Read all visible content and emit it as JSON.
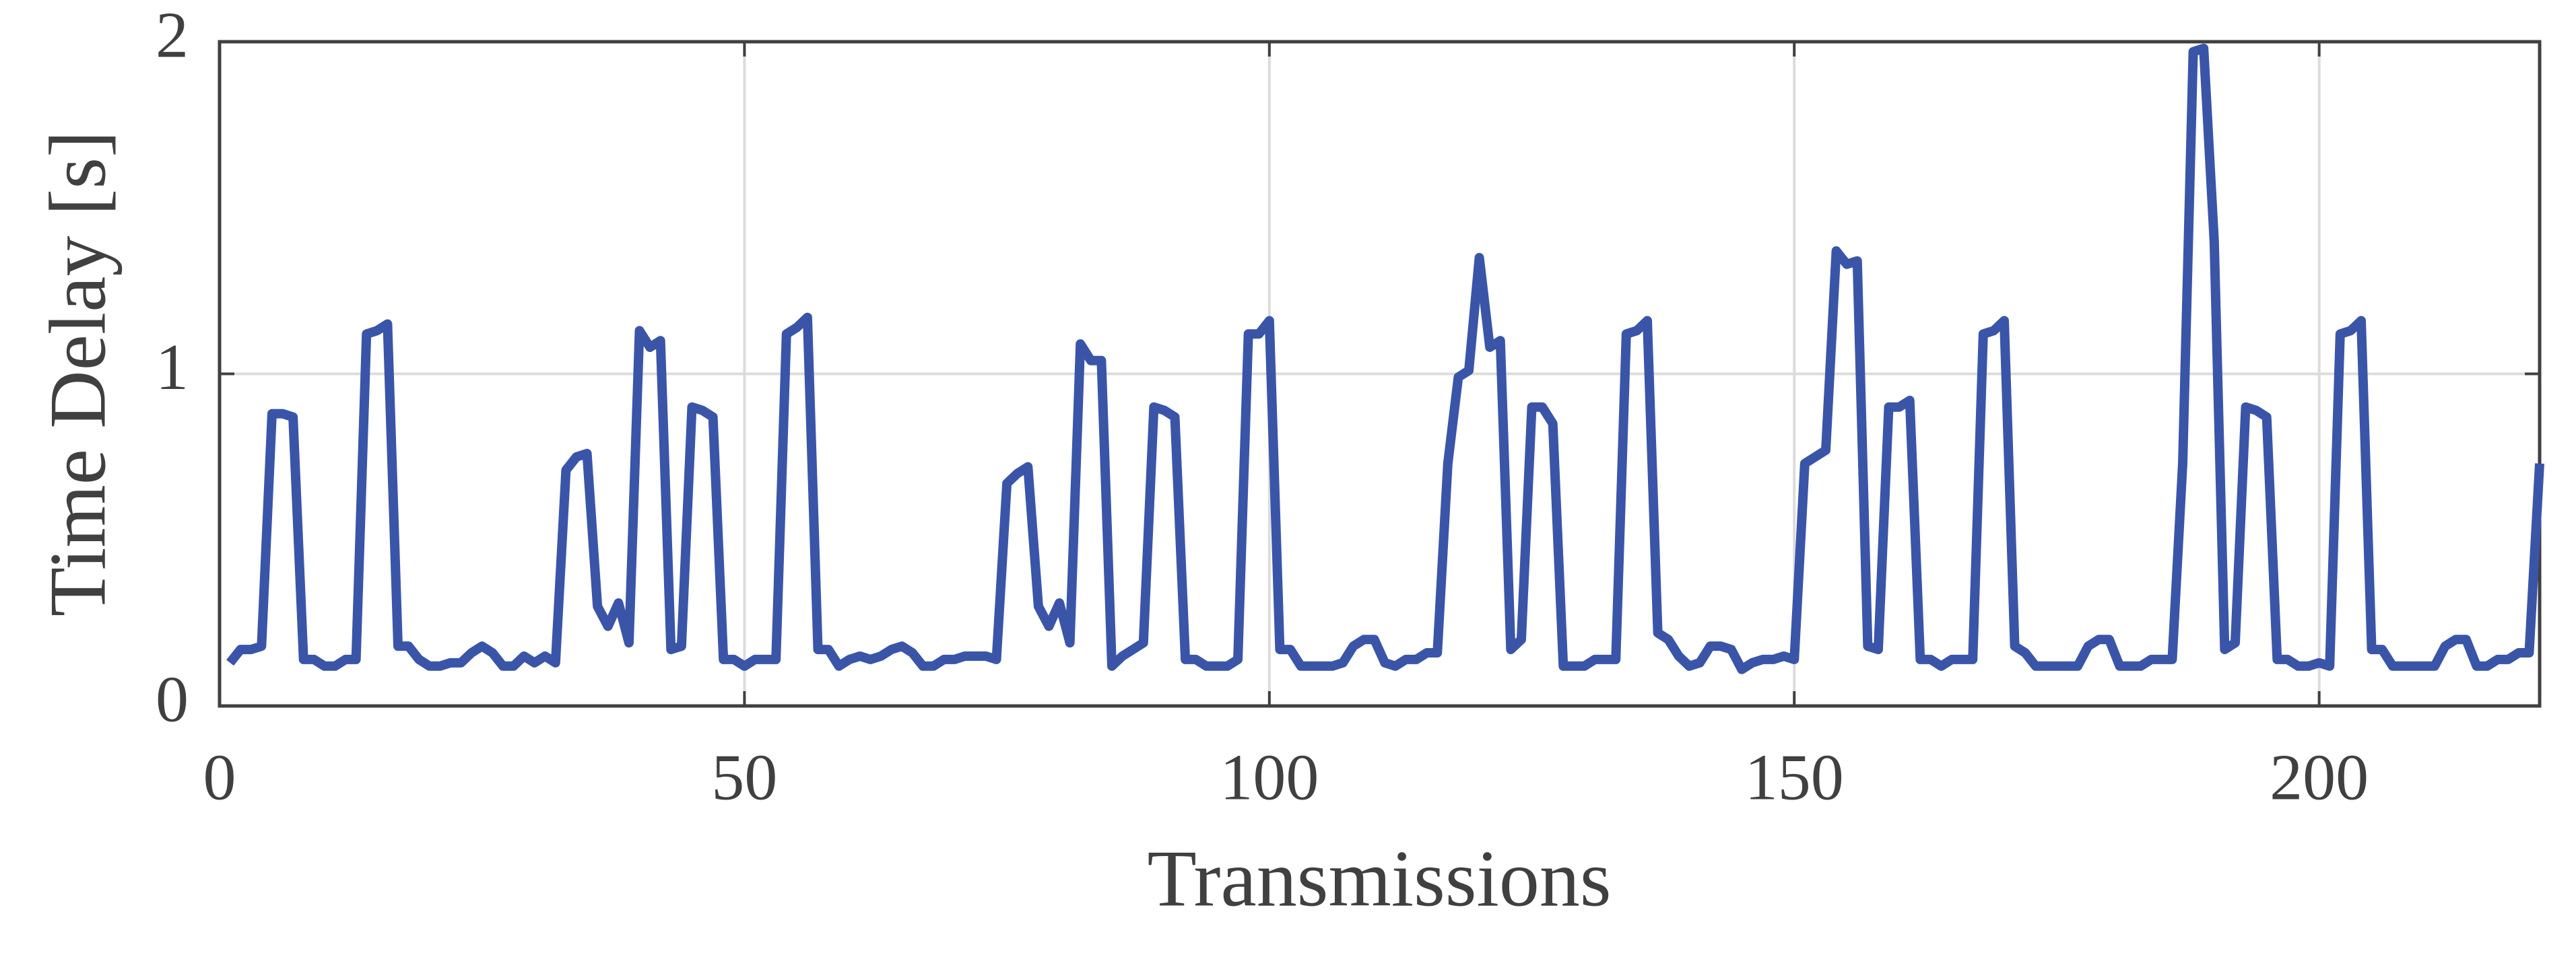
{
  "chart_data": {
    "type": "line",
    "x_label": "Transmissions",
    "y_label": "Time Delay [s]",
    "xlim": [
      0,
      221
    ],
    "xticks": [
      0,
      50,
      100,
      150,
      200
    ],
    "ylim": [
      0,
      2
    ],
    "yticks": [
      0,
      1,
      2
    ],
    "grid": true,
    "x": [
      1,
      2,
      3,
      4,
      5,
      6,
      7,
      8,
      9,
      10,
      11,
      12,
      13,
      14,
      15,
      16,
      17,
      18,
      19,
      20,
      21,
      22,
      23,
      24,
      25,
      26,
      27,
      28,
      29,
      30,
      31,
      32,
      33,
      34,
      35,
      36,
      37,
      38,
      39,
      40,
      41,
      42,
      43,
      44,
      45,
      46,
      47,
      48,
      49,
      50,
      51,
      52,
      53,
      54,
      55,
      56,
      57,
      58,
      59,
      60,
      61,
      62,
      63,
      64,
      65,
      66,
      67,
      68,
      69,
      70,
      71,
      72,
      73,
      74,
      75,
      76,
      77,
      78,
      79,
      80,
      81,
      82,
      83,
      84,
      85,
      86,
      87,
      88,
      89,
      90,
      91,
      92,
      93,
      94,
      95,
      96,
      97,
      98,
      99,
      100,
      101,
      102,
      103,
      104,
      105,
      106,
      107,
      108,
      109,
      110,
      111,
      112,
      113,
      114,
      115,
      116,
      117,
      118,
      119,
      120,
      121,
      122,
      123,
      124,
      125,
      126,
      127,
      128,
      129,
      130,
      131,
      132,
      133,
      134,
      135,
      136,
      137,
      138,
      139,
      140,
      141,
      142,
      143,
      144,
      145,
      146,
      147,
      148,
      149,
      150,
      151,
      152,
      153,
      154,
      155,
      156,
      157,
      158,
      159,
      160,
      161,
      162,
      163,
      164,
      165,
      166,
      167,
      168,
      169,
      170,
      171,
      172,
      173,
      174,
      175,
      176,
      177,
      178,
      179,
      180,
      181,
      182,
      183,
      184,
      185,
      186,
      187,
      188,
      189,
      190,
      191,
      192,
      193,
      194,
      195,
      196,
      197,
      198,
      199,
      200,
      201,
      202,
      203,
      204,
      205,
      206,
      207,
      208,
      209,
      210,
      211,
      212,
      213,
      214,
      215,
      216,
      217,
      218,
      219,
      220,
      221
    ],
    "series": [
      {
        "color": "#3a55a8",
        "values": [
          0.13,
          0.17,
          0.17,
          0.18,
          0.88,
          0.88,
          0.87,
          0.14,
          0.14,
          0.12,
          0.12,
          0.14,
          0.14,
          1.12,
          1.13,
          1.15,
          0.18,
          0.18,
          0.14,
          0.12,
          0.12,
          0.13,
          0.13,
          0.16,
          0.18,
          0.16,
          0.12,
          0.12,
          0.15,
          0.13,
          0.15,
          0.13,
          0.71,
          0.75,
          0.76,
          0.3,
          0.24,
          0.31,
          0.19,
          1.13,
          1.08,
          1.1,
          0.17,
          0.18,
          0.9,
          0.89,
          0.87,
          0.14,
          0.14,
          0.12,
          0.14,
          0.14,
          0.14,
          1.12,
          1.14,
          1.17,
          0.17,
          0.17,
          0.12,
          0.14,
          0.15,
          0.14,
          0.15,
          0.17,
          0.18,
          0.16,
          0.12,
          0.12,
          0.14,
          0.14,
          0.15,
          0.15,
          0.15,
          0.14,
          0.67,
          0.7,
          0.72,
          0.3,
          0.24,
          0.31,
          0.19,
          1.09,
          1.04,
          1.04,
          0.12,
          0.15,
          0.17,
          0.19,
          0.9,
          0.89,
          0.87,
          0.14,
          0.14,
          0.12,
          0.12,
          0.12,
          0.14,
          1.12,
          1.12,
          1.16,
          0.17,
          0.17,
          0.12,
          0.12,
          0.12,
          0.12,
          0.13,
          0.18,
          0.2,
          0.2,
          0.13,
          0.12,
          0.14,
          0.14,
          0.16,
          0.16,
          0.73,
          0.99,
          1.01,
          1.35,
          1.08,
          1.1,
          0.17,
          0.2,
          0.9,
          0.9,
          0.85,
          0.12,
          0.12,
          0.12,
          0.14,
          0.14,
          0.14,
          1.12,
          1.13,
          1.16,
          0.22,
          0.2,
          0.15,
          0.12,
          0.13,
          0.18,
          0.18,
          0.17,
          0.11,
          0.13,
          0.14,
          0.14,
          0.15,
          0.14,
          0.73,
          0.75,
          0.77,
          1.37,
          1.33,
          1.34,
          0.18,
          0.17,
          0.9,
          0.9,
          0.92,
          0.14,
          0.14,
          0.12,
          0.14,
          0.14,
          0.14,
          1.12,
          1.13,
          1.16,
          0.18,
          0.16,
          0.12,
          0.12,
          0.12,
          0.12,
          0.12,
          0.18,
          0.2,
          0.2,
          0.12,
          0.12,
          0.12,
          0.14,
          0.14,
          0.14,
          0.73,
          1.97,
          1.98,
          1.4,
          0.17,
          0.19,
          0.9,
          0.89,
          0.87,
          0.14,
          0.14,
          0.12,
          0.12,
          0.13,
          0.12,
          1.12,
          1.13,
          1.16,
          0.17,
          0.17,
          0.12,
          0.12,
          0.12,
          0.12,
          0.12,
          0.18,
          0.2,
          0.2,
          0.12,
          0.12,
          0.14,
          0.14,
          0.16,
          0.16,
          0.73
        ]
      }
    ]
  }
}
